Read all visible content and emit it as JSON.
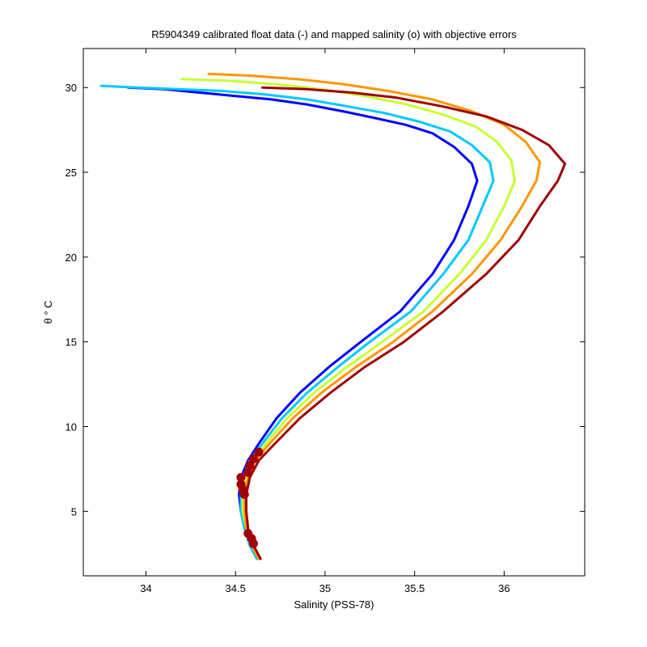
{
  "chart_data": {
    "type": "line",
    "title": "R5904349 calibrated float data (-) and mapped salinity (o) with objective errors",
    "xlabel": "Salinity (PSS-78)",
    "ylabel": "θ ° C",
    "xlim": [
      33.65,
      36.45
    ],
    "ylim": [
      1.2,
      32.3
    ],
    "x_ticks": [
      34,
      34.5,
      35,
      35.5,
      36
    ],
    "x_tick_labels": [
      "34",
      "34.5",
      "35",
      "35.5",
      "36"
    ],
    "y_ticks": [
      5,
      10,
      15,
      20,
      25,
      30
    ],
    "y_tick_labels": [
      "5",
      "10",
      "15",
      "20",
      "25",
      "30"
    ],
    "grid": false,
    "legend": "none",
    "colormap": "jet",
    "series": [
      {
        "color": "#0000ff",
        "x": [
          34.62,
          34.58,
          34.55,
          34.53,
          34.52,
          34.53,
          34.57,
          34.63,
          34.73,
          34.86,
          35.02,
          35.2,
          35.42,
          35.6,
          35.72,
          35.8,
          35.85,
          35.82,
          35.72,
          35.6,
          35.45,
          35.28,
          35.1,
          34.9,
          34.7,
          34.5,
          34.3,
          34.1,
          33.9
        ],
        "y": [
          2.2,
          3,
          4,
          5,
          6,
          7,
          8,
          9,
          10.5,
          12,
          13.5,
          15,
          16.8,
          19,
          21,
          23,
          24.5,
          25.5,
          26.5,
          27.3,
          27.8,
          28.2,
          28.6,
          29,
          29.3,
          29.5,
          29.7,
          29.9,
          30
        ]
      },
      {
        "color": "#00c8ff",
        "x": [
          34.62,
          34.58,
          34.55,
          34.53,
          34.53,
          34.54,
          34.58,
          34.65,
          34.76,
          34.9,
          35.07,
          35.25,
          35.48,
          35.66,
          35.8,
          35.88,
          35.94,
          35.92,
          35.82,
          35.7,
          35.52,
          35.33,
          35.12,
          34.9,
          34.66,
          34.42,
          34.18,
          33.95,
          33.75
        ],
        "y": [
          2.2,
          3,
          4,
          5,
          6,
          7,
          8,
          9,
          10.5,
          12,
          13.5,
          15,
          16.8,
          19,
          21,
          23,
          24.5,
          25.6,
          26.6,
          27.4,
          28,
          28.5,
          28.9,
          29.3,
          29.6,
          29.8,
          29.9,
          30,
          30.1
        ]
      },
      {
        "color": "#c8ff32",
        "x": [
          34.63,
          34.59,
          34.56,
          34.54,
          34.54,
          34.56,
          34.6,
          34.67,
          34.79,
          34.94,
          35.12,
          35.32,
          35.55,
          35.75,
          35.9,
          36,
          36.06,
          36.04,
          35.96,
          35.84,
          35.66,
          35.46,
          35.22,
          34.98,
          34.72,
          34.45,
          34.2
        ],
        "y": [
          2.2,
          3,
          4,
          5,
          6,
          7,
          8,
          9,
          10.5,
          12,
          13.5,
          15,
          16.8,
          19,
          21,
          23,
          24.5,
          25.7,
          26.8,
          27.7,
          28.4,
          29,
          29.5,
          29.9,
          30.2,
          30.4,
          30.5
        ]
      },
      {
        "color": "#ff9600",
        "x": [
          34.63,
          34.59,
          34.56,
          34.55,
          34.55,
          34.57,
          34.61,
          34.69,
          34.82,
          34.98,
          35.17,
          35.38,
          35.6,
          35.82,
          35.98,
          36.1,
          36.18,
          36.2,
          36.12,
          36,
          35.82,
          35.6,
          35.35,
          35.1,
          34.84,
          34.58,
          34.35
        ],
        "y": [
          2.2,
          3,
          4,
          5,
          6,
          7,
          8,
          9,
          10.5,
          12,
          13.5,
          15,
          16.8,
          19,
          21,
          23,
          24.5,
          25.6,
          26.8,
          27.8,
          28.6,
          29.3,
          29.8,
          30.2,
          30.5,
          30.7,
          30.8
        ]
      },
      {
        "color": "#a00000",
        "x": [
          34.64,
          34.6,
          34.57,
          34.56,
          34.56,
          34.58,
          34.63,
          34.72,
          34.86,
          35.03,
          35.22,
          35.44,
          35.66,
          35.9,
          36.08,
          36.2,
          36.3,
          36.34,
          36.25,
          36.1,
          35.9,
          35.65,
          35.4,
          35.15,
          34.9,
          34.65
        ],
        "y": [
          2.2,
          3,
          4,
          5,
          6,
          7,
          8,
          9,
          10.5,
          12,
          13.5,
          15,
          16.8,
          19,
          21,
          23,
          24.5,
          25.5,
          26.6,
          27.5,
          28.3,
          28.9,
          29.4,
          29.7,
          29.9,
          30
        ]
      }
    ],
    "mapped_points": {
      "color": "#a00000",
      "x": [
        34.6,
        34.59,
        34.57,
        34.55,
        34.54,
        34.53,
        34.53,
        34.57,
        34.58,
        34.6,
        34.63
      ],
      "y": [
        3.1,
        3.4,
        3.7,
        6,
        6.3,
        6.6,
        7,
        7.3,
        7.7,
        8.1,
        8.5
      ]
    }
  }
}
